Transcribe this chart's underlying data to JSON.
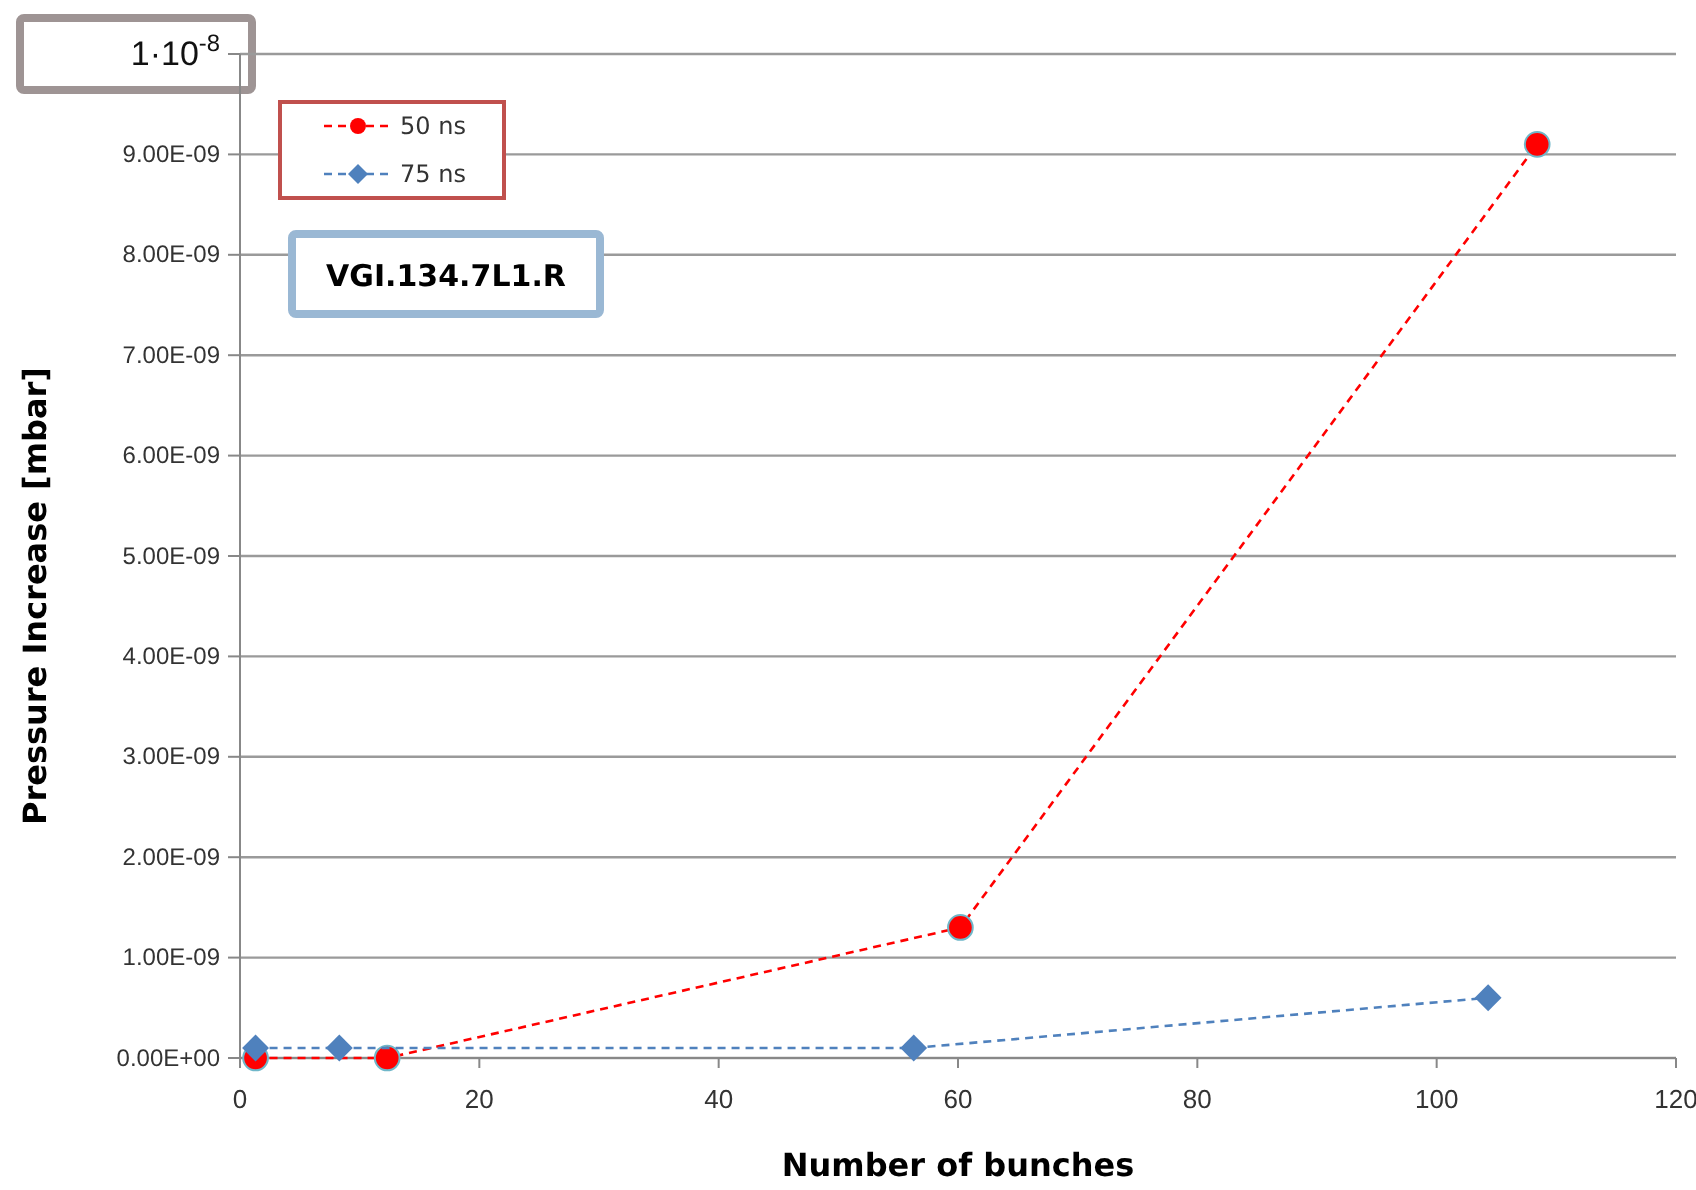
{
  "chart_data": {
    "type": "line",
    "xlabel": "Number of bunches",
    "ylabel": "Pressure Increase [mbar]",
    "annotations": [
      "VGI.134.7L1.R"
    ],
    "xlim": [
      0,
      120
    ],
    "xticks": [
      0,
      20,
      40,
      60,
      80,
      100,
      120
    ],
    "ylim": [
      0,
      1e-08
    ],
    "yticks": [
      {
        "value": 0,
        "label": "0.00E+00"
      },
      {
        "value": 1e-09,
        "label": "1.00E-09"
      },
      {
        "value": 2e-09,
        "label": "2.00E-09"
      },
      {
        "value": 3e-09,
        "label": "3.00E-09"
      },
      {
        "value": 4e-09,
        "label": "4.00E-09"
      },
      {
        "value": 5e-09,
        "label": "5.00E-09"
      },
      {
        "value": 6e-09,
        "label": "6.00E-09"
      },
      {
        "value": 7e-09,
        "label": "7.00E-09"
      },
      {
        "value": 8e-09,
        "label": "8.00E-09"
      },
      {
        "value": 9e-09,
        "label": "9.00E-09"
      },
      {
        "value": 1e-08,
        "label": "1·10$^{-8}$"
      }
    ],
    "grid": "y",
    "legend": "top left",
    "line_style": "dashed",
    "series": [
      {
        "name": "50 ns",
        "color": "#ff0000",
        "marker": "circle",
        "x": [
          1.3,
          12.3,
          60.2,
          108.4
        ],
        "values": [
          0.0,
          0.0,
          1.3e-09,
          9.1e-09
        ]
      },
      {
        "name": "75 ns",
        "color": "#4f81bd",
        "marker": "diamond",
        "x": [
          1.3,
          8.3,
          56.3,
          104.3
        ],
        "values": [
          1e-10,
          1e-10,
          1e-10,
          6e-10
        ]
      }
    ]
  }
}
